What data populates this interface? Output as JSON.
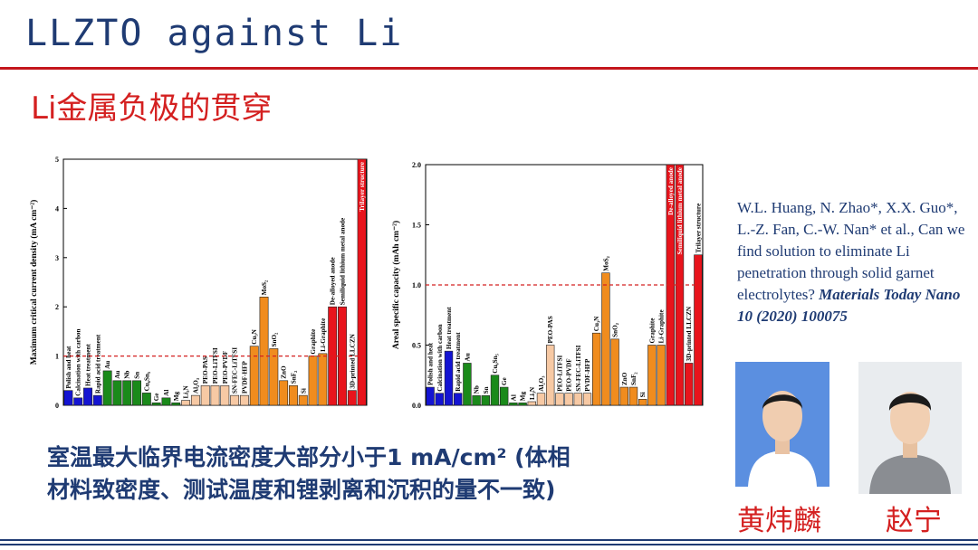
{
  "slide": {
    "title": "LLZTO against Li",
    "subtitle": "Li金属负极的贯穿",
    "conclusion_line1": "室温最大临界电流密度大部分小于1 mA/cm² (体相",
    "conclusion_line2": "材料致密度、测试温度和锂剥离和沉积的量不一致)",
    "reference_plain": "W.L. Huang, N. Zhao*,  X.X. Guo*, L.-Z. Fan, C.-W. Nan* et al., Can we find solution to eliminate Li penetration through solid garnet electrolytes?",
    "reference_bold": "Materials Today Nano 10 (2020) 100075",
    "person1_name": "黄炜麟",
    "person2_name": "赵宁"
  },
  "colors": {
    "title": "#1f3b73",
    "accent_red": "#d42020",
    "blue": "#1414d2",
    "green": "#1a8a1a",
    "peach": "#f7c9a4",
    "orange": "#f08c1e",
    "red": "#e8141c"
  },
  "chart_data": [
    {
      "type": "bar",
      "ylabel": "Maximum critical current density (mA cm⁻²)",
      "ylim": [
        0,
        5
      ],
      "yticks": [
        "0",
        "1",
        "2",
        "3",
        "4",
        "5"
      ],
      "reference_line": 1,
      "grid": false,
      "categories": [
        "Polish and heat",
        "Calcination with carbon",
        "Heat treatment",
        "Rapid acid treatment",
        "Au",
        "Au",
        "Nb",
        "Sn",
        "Cu₆Sn₅",
        "Ge",
        "Al",
        "Mg",
        "Li₃N",
        "Al₂O₃",
        "PEO-PAS",
        "PEO-LiTFSI",
        "PEO-PVDF",
        "SN-FEC-LiTFSI",
        "PVDF-HFP",
        "Cu₃N",
        "MoS₂",
        "SnO₂",
        "ZnO",
        "SnF₂",
        "Si",
        "Graphite",
        "Li-Graphite",
        "De-alloyed anode",
        "Semiliquid lithium metal anode",
        "3D-printed LLCZN",
        "Trilayer structure"
      ],
      "values": [
        0.3,
        0.15,
        0.35,
        0.2,
        0.7,
        0.5,
        0.5,
        0.5,
        0.25,
        0.05,
        0.15,
        0.05,
        0.1,
        0.2,
        0.4,
        0.4,
        0.4,
        0.2,
        0.2,
        1.2,
        2.2,
        1.15,
        0.5,
        0.4,
        0.2,
        1.0,
        1.05,
        2.0,
        2.0,
        0.3,
        5.0
      ],
      "group_colors": [
        "blue",
        "blue",
        "blue",
        "blue",
        "green",
        "green",
        "green",
        "green",
        "green",
        "green",
        "green",
        "green",
        "peach",
        "peach",
        "peach",
        "peach",
        "peach",
        "peach",
        "peach",
        "orange",
        "orange",
        "orange",
        "orange",
        "orange",
        "orange",
        "orange",
        "orange",
        "red",
        "red",
        "red",
        "red"
      ]
    },
    {
      "type": "bar",
      "ylabel": "Areal specific capacity (mAh cm⁻²)",
      "ylim": [
        0,
        2.0
      ],
      "yticks": [
        "0.0",
        "0.5",
        "1.0",
        "1.5",
        "2.0"
      ],
      "reference_line": 1.0,
      "grid": false,
      "categories": [
        "Polish and heat",
        "Calcination with carbon",
        "Heat treatment",
        "Rapid acid treatment",
        "Au",
        "Nb",
        "Sn",
        "Cu₆Sn₅",
        "Ge",
        "Al",
        "Mg",
        "Li₃N",
        "Al₂O₃",
        "PEO-PAS",
        "PEO-LiTFSI",
        "PEO-PVDF",
        "SN-FEC-LiTFSI",
        "PVDF-HFP",
        "Cu₃N",
        "MoS₂",
        "SnO₂",
        "ZnO",
        "SnF₂",
        "Si",
        "Graphite",
        "Li-Graphite",
        "De-alloyed anode",
        "Semiliquid lithium metal anode",
        "3D-printed LLCZN",
        "Trilayer structure"
      ],
      "values": [
        0.15,
        0.1,
        0.45,
        0.1,
        0.35,
        0.08,
        0.08,
        0.25,
        0.15,
        0.02,
        0.02,
        0.03,
        0.1,
        0.5,
        0.1,
        0.1,
        0.1,
        0.1,
        0.6,
        1.1,
        0.55,
        0.15,
        0.15,
        0.05,
        0.5,
        0.5,
        2.0,
        2.0,
        0.35,
        1.25
      ],
      "group_colors": [
        "blue",
        "blue",
        "blue",
        "blue",
        "green",
        "green",
        "green",
        "green",
        "green",
        "green",
        "green",
        "peach",
        "peach",
        "peach",
        "peach",
        "peach",
        "peach",
        "peach",
        "orange",
        "orange",
        "orange",
        "orange",
        "orange",
        "orange",
        "orange",
        "orange",
        "red",
        "red",
        "red",
        "red"
      ]
    }
  ]
}
